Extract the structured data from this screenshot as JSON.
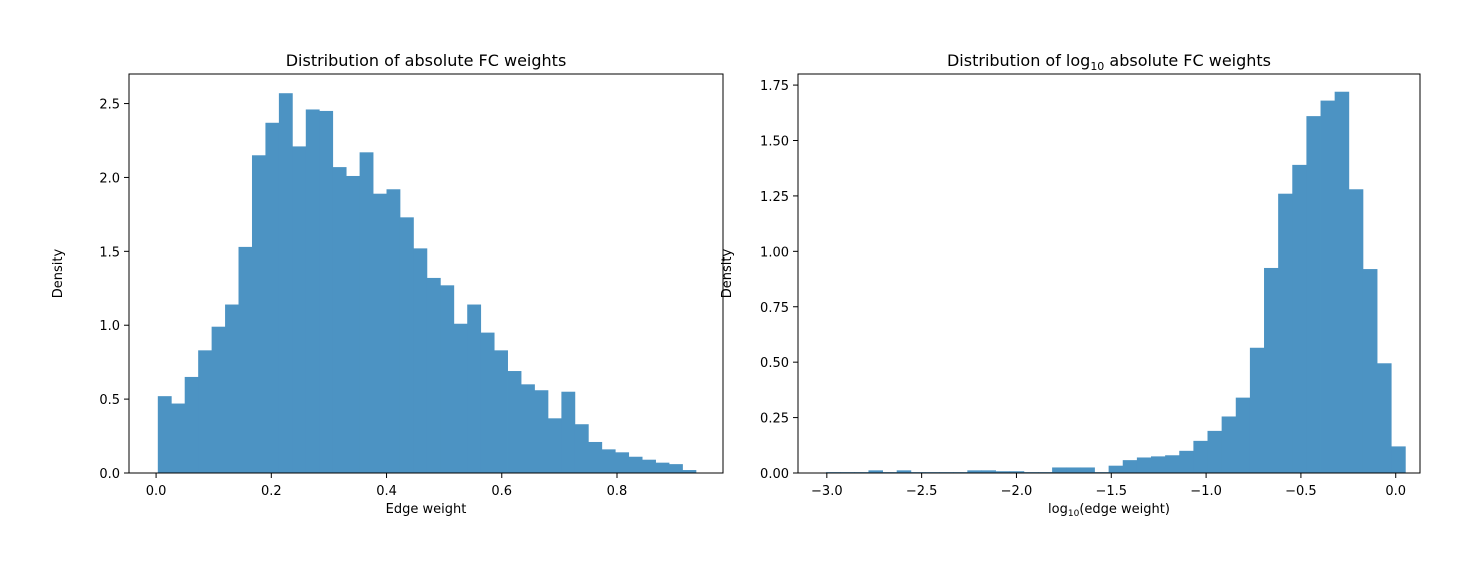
{
  "colors": {
    "bar": "#4c93c3",
    "axis": "#000000",
    "background": "#ffffff"
  },
  "chart_data": [
    {
      "type": "bar",
      "title": "Distribution of absolute FC weights",
      "xlabel": "Edge weight",
      "ylabel": "Density",
      "xlim": [
        -0.047,
        0.984
      ],
      "ylim": [
        0,
        2.7
      ],
      "xticks": [
        0.0,
        0.2,
        0.4,
        0.6,
        0.8
      ],
      "xtick_labels": [
        "0.0",
        "0.2",
        "0.4",
        "0.6",
        "0.8"
      ],
      "yticks": [
        0.0,
        0.5,
        1.0,
        1.5,
        2.0,
        2.5
      ],
      "ytick_labels": [
        "0.0",
        "0.5",
        "1.0",
        "1.5",
        "2.0",
        "2.5"
      ],
      "bin_start": 0.003,
      "bin_width": 0.02335,
      "values": [
        0.52,
        0.47,
        0.65,
        0.83,
        0.99,
        1.14,
        1.53,
        2.15,
        2.37,
        2.57,
        2.21,
        2.46,
        2.45,
        2.07,
        2.01,
        2.17,
        1.89,
        1.92,
        1.73,
        1.52,
        1.32,
        1.27,
        1.01,
        1.14,
        0.95,
        0.83,
        0.69,
        0.6,
        0.56,
        0.37,
        0.55,
        0.33,
        0.21,
        0.16,
        0.14,
        0.11,
        0.09,
        0.07,
        0.06,
        0.02
      ]
    },
    {
      "type": "bar",
      "title": "Distribution of log",
      "title_sub": "10",
      "title_rest": " absolute FC weights",
      "xlabel": "log",
      "xlabel_sub": "10",
      "xlabel_rest": "(edge weight)",
      "ylabel": "Density",
      "xlim": [
        -3.152,
        0.128
      ],
      "ylim": [
        0,
        1.8
      ],
      "xticks": [
        -3.0,
        -2.5,
        -2.0,
        -1.5,
        -1.0,
        -0.5,
        0.0
      ],
      "xtick_labels": [
        "−3.0",
        "−2.5",
        "−2.0",
        "−1.5",
        "−1.0",
        "−0.5",
        "0.0"
      ],
      "yticks": [
        0.0,
        0.25,
        0.5,
        0.75,
        1.0,
        1.25,
        1.5,
        1.75
      ],
      "ytick_labels": [
        "0.00",
        "0.25",
        "0.50",
        "0.75",
        "1.00",
        "1.25",
        "1.50",
        "1.75"
      ],
      "bin_start": -3.004,
      "bin_width": 0.0745,
      "values": [
        0.004,
        0.004,
        0.004,
        0.012,
        0.004,
        0.012,
        0.004,
        0.004,
        0.004,
        0.004,
        0.012,
        0.012,
        0.008,
        0.008,
        0.004,
        0.004,
        0.025,
        0.025,
        0.025,
        0.004,
        0.033,
        0.058,
        0.07,
        0.075,
        0.08,
        0.1,
        0.145,
        0.19,
        0.255,
        0.34,
        0.565,
        0.925,
        1.26,
        1.39,
        1.61,
        1.68,
        1.72,
        1.28,
        0.92,
        0.495,
        0.12
      ]
    }
  ]
}
